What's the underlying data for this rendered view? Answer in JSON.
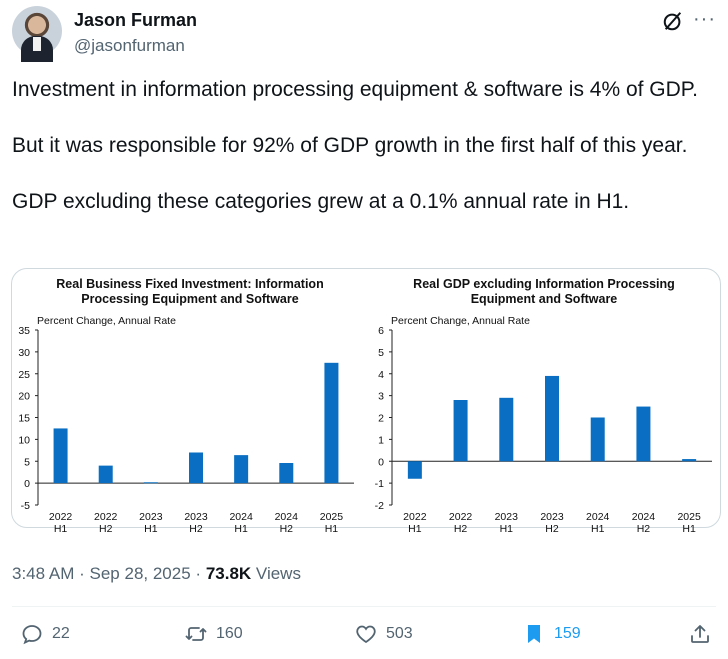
{
  "author": {
    "name": "Jason Furman",
    "handle": "@jasonfurman"
  },
  "tweet": {
    "paragraphs": [
      "Investment in information processing equipment & software is 4% of GDP.",
      "But it was responsible for 92% of GDP growth in the first half of this year.",
      "GDP excluding these categories grew at a 0.1% annual rate in H1."
    ]
  },
  "meta": {
    "time": "3:48 AM",
    "separator": "·",
    "date": "Sep 28, 2025",
    "views_count": "73.8K",
    "views_label": "Views"
  },
  "actions": {
    "replies": "22",
    "reposts": "160",
    "likes": "503",
    "bookmarks": "159"
  },
  "colors": {
    "bar": "#0a6fc2",
    "accent": "#1d9bf0",
    "muted": "#536471"
  },
  "icons": [
    "grok-icon",
    "more-icon",
    "reply-icon",
    "repost-icon",
    "like-icon",
    "bookmark-icon",
    "share-icon"
  ],
  "chart_data": [
    {
      "type": "bar",
      "title": "Real Business Fixed Investment: Information Processing Equipment and Software",
      "ylabel": "Percent Change, Annual Rate",
      "categories": [
        [
          "2022",
          "H1"
        ],
        [
          "2022",
          "H2"
        ],
        [
          "2023",
          "H1"
        ],
        [
          "2023",
          "H2"
        ],
        [
          "2024",
          "H1"
        ],
        [
          "2024",
          "H2"
        ],
        [
          "2025",
          "H1"
        ]
      ],
      "values": [
        12.5,
        4.0,
        0.2,
        7.0,
        6.4,
        4.6,
        27.5
      ],
      "ylim": [
        -5,
        35
      ],
      "yticks": [
        -5,
        0,
        5,
        10,
        15,
        20,
        25,
        30,
        35
      ],
      "grid": false
    },
    {
      "type": "bar",
      "title": "Real GDP excluding Information Processing Equipment and Software",
      "ylabel": "Percent Change, Annual Rate",
      "categories": [
        [
          "2022",
          "H1"
        ],
        [
          "2022",
          "H2"
        ],
        [
          "2023",
          "H1"
        ],
        [
          "2023",
          "H2"
        ],
        [
          "2024",
          "H1"
        ],
        [
          "2024",
          "H2"
        ],
        [
          "2025",
          "H1"
        ]
      ],
      "values": [
        -0.8,
        2.8,
        2.9,
        3.9,
        2.0,
        2.5,
        0.1
      ],
      "ylim": [
        -2,
        6
      ],
      "yticks": [
        -2,
        -1,
        0,
        1,
        2,
        3,
        4,
        5,
        6
      ],
      "grid": false
    }
  ]
}
